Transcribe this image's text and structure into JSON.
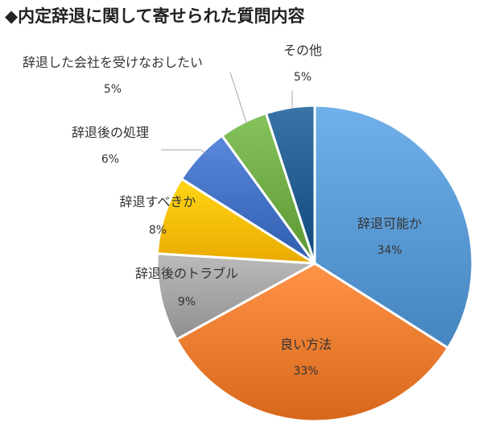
{
  "title": "◆内定辞退に関して寄せられた質問内容",
  "chart_data": {
    "type": "pie",
    "title": "◆内定辞退に関して寄せられた質問内容",
    "slices": [
      {
        "label": "辞退可能か",
        "value": 34,
        "pct": "34%",
        "color": "#5b9bd5"
      },
      {
        "label": "良い方法",
        "value": 33,
        "pct": "33%",
        "color": "#ed7d31"
      },
      {
        "label": "辞退後のトラブル",
        "value": 9,
        "pct": "9%",
        "color": "#a5a5a5"
      },
      {
        "label": "辞退すべきか",
        "value": 8,
        "pct": "8%",
        "color": "#ffc000"
      },
      {
        "label": "辞退後の処理",
        "value": 6,
        "pct": "6%",
        "color": "#4472c4"
      },
      {
        "label": "辞退した会社を受けなおしたい",
        "value": 5,
        "pct": "5%",
        "color": "#70ad47"
      },
      {
        "label": "その他",
        "value": 5,
        "pct": "5%",
        "color": "#255e91"
      }
    ]
  }
}
